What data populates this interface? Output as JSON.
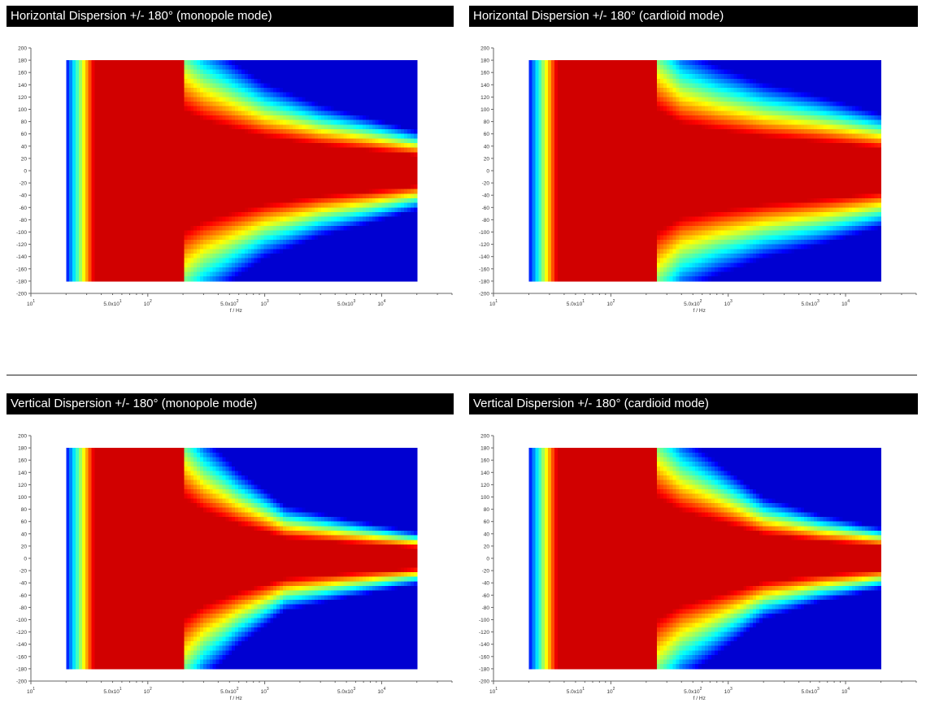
{
  "chart_data": [
    {
      "type": "heatmap",
      "title": "Horizontal Dispersion +/- 180° (monopole mode)",
      "plane": "horizontal",
      "mode": "monopole",
      "xlabel": "f / Hz",
      "ylabel": "",
      "xscale": "log",
      "xlim": [
        10,
        40000
      ],
      "ylim": [
        -200,
        200
      ],
      "data_x_range": [
        20,
        20000
      ],
      "data_y_range": [
        -180,
        180
      ],
      "yticks": [
        200,
        180,
        160,
        140,
        120,
        100,
        80,
        60,
        40,
        20,
        0,
        -20,
        -40,
        -60,
        -80,
        -100,
        -120,
        -140,
        -160,
        -180,
        -200
      ],
      "xtick_labels": [
        {
          "value": 10,
          "label": "10",
          "sup": "1"
        },
        {
          "value": 50,
          "label": "5.0x10",
          "sup": "1"
        },
        {
          "value": 100,
          "label": "10",
          "sup": "2"
        },
        {
          "value": 500,
          "label": "5.0x10",
          "sup": "2"
        },
        {
          "value": 1000,
          "label": "10",
          "sup": "3"
        },
        {
          "value": 5000,
          "label": "5.0x10",
          "sup": "3"
        },
        {
          "value": 10000,
          "label": "10",
          "sup": "4"
        }
      ],
      "colormap": "jet",
      "beam_width_deg": [
        {
          "f": 20,
          "w": 180
        },
        {
          "f": 200,
          "w": 180
        },
        {
          "f": 300,
          "w": 150
        },
        {
          "f": 600,
          "w": 120
        },
        {
          "f": 1000,
          "w": 100
        },
        {
          "f": 3000,
          "w": 75
        },
        {
          "f": 8000,
          "w": 60
        },
        {
          "f": 20000,
          "w": 45
        }
      ]
    },
    {
      "type": "heatmap",
      "title": "Horizontal Dispersion +/- 180° (cardioid mode)",
      "plane": "horizontal",
      "mode": "cardioid",
      "xlabel": "f / Hz",
      "ylabel": "",
      "xscale": "log",
      "xlim": [
        10,
        40000
      ],
      "ylim": [
        -200,
        200
      ],
      "data_x_range": [
        20,
        20000
      ],
      "data_y_range": [
        -180,
        180
      ],
      "yticks": [
        200,
        180,
        160,
        140,
        120,
        100,
        80,
        60,
        40,
        20,
        0,
        -20,
        -40,
        -60,
        -80,
        -100,
        -120,
        -140,
        -160,
        -180,
        -200
      ],
      "xtick_labels": [
        {
          "value": 10,
          "label": "10",
          "sup": "1"
        },
        {
          "value": 50,
          "label": "5.0x10",
          "sup": "1"
        },
        {
          "value": 100,
          "label": "10",
          "sup": "2"
        },
        {
          "value": 500,
          "label": "5.0x10",
          "sup": "2"
        },
        {
          "value": 1000,
          "label": "10",
          "sup": "3"
        },
        {
          "value": 5000,
          "label": "5.0x10",
          "sup": "3"
        },
        {
          "value": 10000,
          "label": "10",
          "sup": "4"
        }
      ],
      "colormap": "jet",
      "beam_width_deg": [
        {
          "f": 20,
          "w": 180
        },
        {
          "f": 250,
          "w": 180
        },
        {
          "f": 400,
          "w": 140
        },
        {
          "f": 800,
          "w": 120
        },
        {
          "f": 2000,
          "w": 100
        },
        {
          "f": 6000,
          "w": 85
        },
        {
          "f": 20000,
          "w": 65
        }
      ]
    },
    {
      "type": "heatmap",
      "title": "Vertical Dispersion +/- 180° (monopole mode)",
      "plane": "vertical",
      "mode": "monopole",
      "xlabel": "f / Hz",
      "ylabel": "",
      "xscale": "log",
      "xlim": [
        10,
        40000
      ],
      "ylim": [
        -200,
        200
      ],
      "data_x_range": [
        20,
        20000
      ],
      "data_y_range": [
        -180,
        180
      ],
      "yticks": [
        200,
        180,
        160,
        140,
        120,
        100,
        80,
        60,
        40,
        20,
        0,
        -20,
        -40,
        -60,
        -80,
        -100,
        -120,
        -140,
        -160,
        -180,
        -200
      ],
      "xtick_labels": [
        {
          "value": 10,
          "label": "10",
          "sup": "1"
        },
        {
          "value": 50,
          "label": "5.0x10",
          "sup": "1"
        },
        {
          "value": 100,
          "label": "10",
          "sup": "2"
        },
        {
          "value": 500,
          "label": "5.0x10",
          "sup": "2"
        },
        {
          "value": 1000,
          "label": "10",
          "sup": "3"
        },
        {
          "value": 5000,
          "label": "5.0x10",
          "sup": "3"
        },
        {
          "value": 10000,
          "label": "10",
          "sup": "4"
        }
      ],
      "colormap": "jet",
      "beam_width_deg": [
        {
          "f": 20,
          "w": 180
        },
        {
          "f": 200,
          "w": 180
        },
        {
          "f": 300,
          "w": 140
        },
        {
          "f": 600,
          "w": 100
        },
        {
          "f": 1500,
          "w": 60
        },
        {
          "f": 5000,
          "w": 45
        },
        {
          "f": 20000,
          "w": 30
        }
      ]
    },
    {
      "type": "heatmap",
      "title": "Vertical Dispersion +/- 180° (cardioid mode)",
      "plane": "vertical",
      "mode": "cardioid",
      "xlabel": "f / Hz",
      "ylabel": "",
      "xscale": "log",
      "xlim": [
        10,
        40000
      ],
      "ylim": [
        -200,
        200
      ],
      "data_x_range": [
        20,
        20000
      ],
      "data_y_range": [
        -180,
        180
      ],
      "yticks": [
        200,
        180,
        160,
        140,
        120,
        100,
        80,
        60,
        40,
        20,
        0,
        -20,
        -40,
        -60,
        -80,
        -100,
        -120,
        -140,
        -160,
        -180,
        -200
      ],
      "xtick_labels": [
        {
          "value": 10,
          "label": "10",
          "sup": "1"
        },
        {
          "value": 50,
          "label": "5.0x10",
          "sup": "1"
        },
        {
          "value": 100,
          "label": "10",
          "sup": "2"
        },
        {
          "value": 500,
          "label": "5.0x10",
          "sup": "2"
        },
        {
          "value": 1000,
          "label": "10",
          "sup": "3"
        },
        {
          "value": 5000,
          "label": "5.0x10",
          "sup": "3"
        },
        {
          "value": 10000,
          "label": "10",
          "sup": "4"
        }
      ],
      "colormap": "jet",
      "beam_width_deg": [
        {
          "f": 20,
          "w": 180
        },
        {
          "f": 250,
          "w": 180
        },
        {
          "f": 400,
          "w": 140
        },
        {
          "f": 800,
          "w": 110
        },
        {
          "f": 2000,
          "w": 70
        },
        {
          "f": 6000,
          "w": 50
        },
        {
          "f": 20000,
          "w": 35
        }
      ]
    }
  ]
}
